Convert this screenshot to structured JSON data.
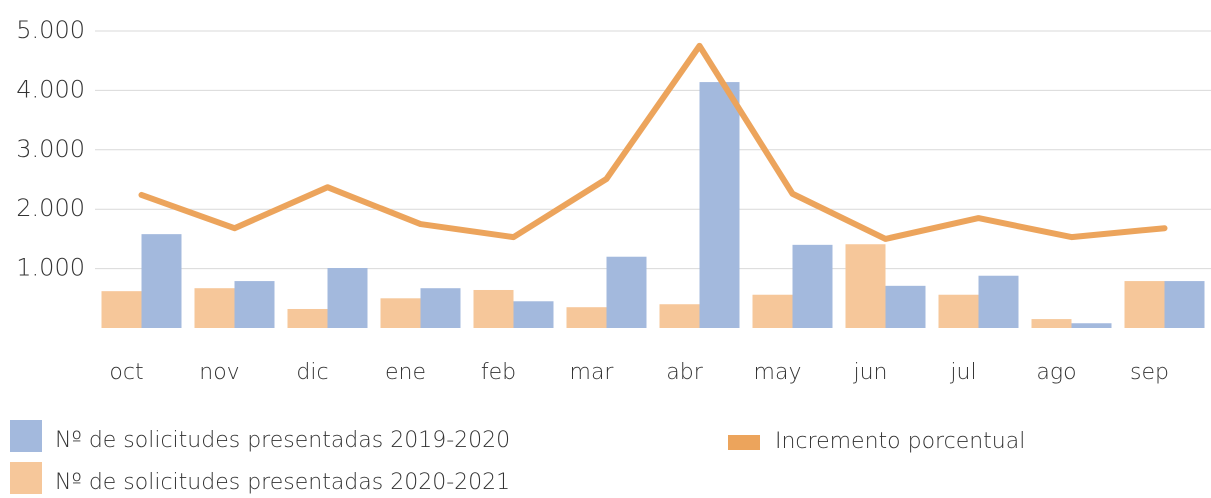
{
  "chart_data": {
    "type": "bar_line",
    "categories": [
      "oct",
      "nov",
      "dic",
      "ene",
      "feb",
      "mar",
      "abr",
      "may",
      "jun",
      "jul",
      "ago",
      "sep"
    ],
    "series": [
      {
        "name": "Nº de solicitudes presentadas 2019-2020",
        "color": "#a3b9dd",
        "type": "bar",
        "values": [
          1580,
          790,
          1010,
          670,
          450,
          1200,
          4140,
          1400,
          710,
          880,
          80,
          790
        ]
      },
      {
        "name": "Nº de solicitudes presentadas 2020-2021",
        "color": "#f6c79a",
        "type": "bar",
        "values": [
          620,
          670,
          320,
          500,
          640,
          350,
          400,
          560,
          1410,
          560,
          150,
          790
        ]
      },
      {
        "name": "Incremento porcentual",
        "color": "#eca45c",
        "type": "line",
        "values": [
          2240,
          1680,
          2370,
          1750,
          1530,
          2510,
          4750,
          2260,
          1500,
          1850,
          1530,
          1680
        ]
      }
    ],
    "ylim": [
      0,
      5000
    ],
    "yticks": [
      {
        "value": 1000,
        "label": "1.000"
      },
      {
        "value": 2000,
        "label": "2.000"
      },
      {
        "value": 3000,
        "label": "3.000"
      },
      {
        "value": 4000,
        "label": "4.000"
      },
      {
        "value": 5000,
        "label": "5.000"
      }
    ],
    "grid": true,
    "legend": "bottom"
  }
}
